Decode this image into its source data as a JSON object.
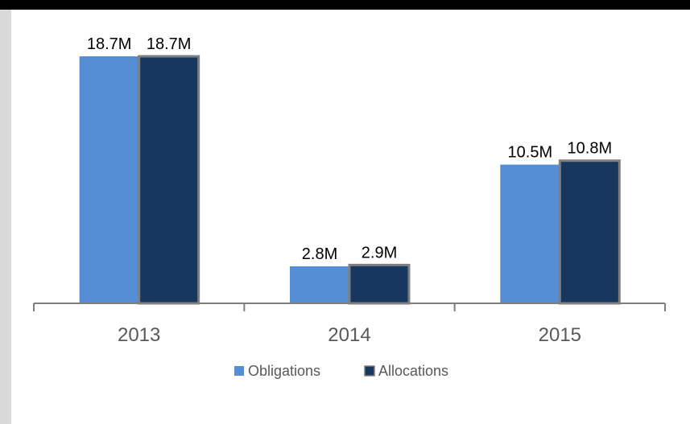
{
  "chart_data": {
    "type": "bar",
    "categories": [
      "2013",
      "2014",
      "2015"
    ],
    "series": [
      {
        "name": "Obligations",
        "values": [
          18.7,
          2.8,
          10.5
        ],
        "labels": [
          "18.7M",
          "2.8M",
          "10.5M"
        ],
        "color": "#558ED5"
      },
      {
        "name": "Allocations",
        "values": [
          18.7,
          2.9,
          10.8
        ],
        "labels": [
          "18.7M",
          "2.9M",
          "10.8M"
        ],
        "color": "#17375E",
        "stroke": "#7F7F7F"
      }
    ],
    "unit": "M",
    "ylim": [
      0,
      18.7
    ],
    "grid": false,
    "legend_position": "bottom",
    "title": "",
    "xlabel": "",
    "ylabel": ""
  },
  "colors": {
    "frame_top": "#000000",
    "frame_left": "#D9D9D9",
    "axis": "#7F7F7F",
    "tick_text": "#595959"
  }
}
